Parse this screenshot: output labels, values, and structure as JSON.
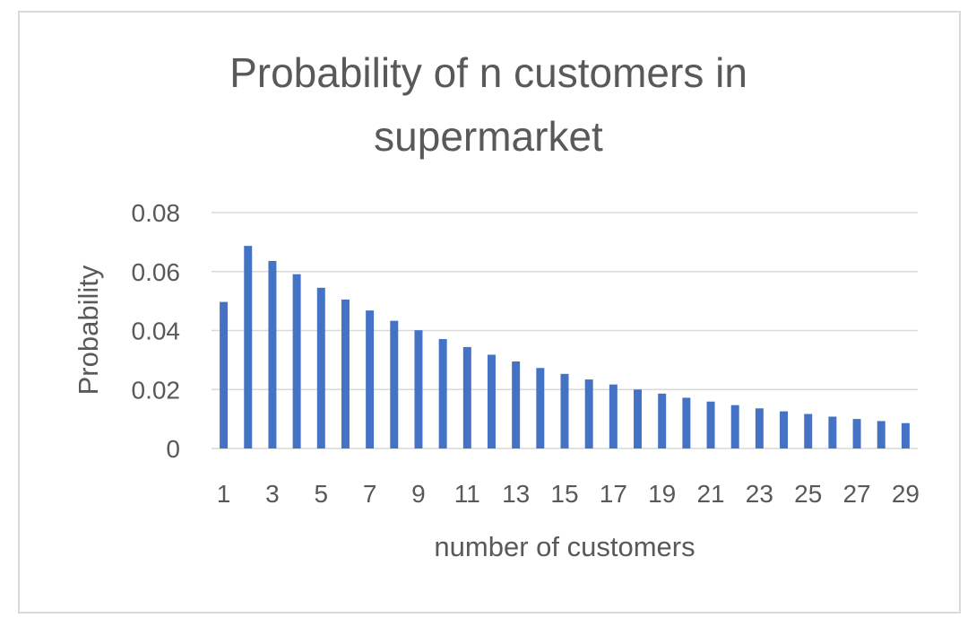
{
  "chart_data": {
    "type": "bar",
    "title": "Probability of n customers in supermarket",
    "title_lines": [
      "Probability of n customers in",
      "supermarket"
    ],
    "xlabel": "number of customers",
    "ylabel": "Probability",
    "categories": [
      "1",
      "2",
      "3",
      "4",
      "5",
      "6",
      "7",
      "8",
      "9",
      "10",
      "11",
      "12",
      "13",
      "14",
      "15",
      "16",
      "17",
      "18",
      "19",
      "20",
      "21",
      "22",
      "23",
      "24",
      "25",
      "26",
      "27",
      "28",
      "29"
    ],
    "x_tick_labels": [
      "1",
      "3",
      "5",
      "7",
      "9",
      "11",
      "13",
      "15",
      "17",
      "19",
      "21",
      "23",
      "25",
      "27",
      "29"
    ],
    "values": [
      0.0497,
      0.0687,
      0.0636,
      0.0591,
      0.0545,
      0.0505,
      0.0468,
      0.0433,
      0.0401,
      0.0371,
      0.0344,
      0.0318,
      0.0295,
      0.0273,
      0.0253,
      0.0234,
      0.0217,
      0.02,
      0.0186,
      0.0172,
      0.0159,
      0.0147,
      0.0136,
      0.0126,
      0.0117,
      0.0108,
      0.01,
      0.0093,
      0.0086
    ],
    "ylim": [
      0,
      0.08
    ],
    "y_ticks": [
      0,
      0.02,
      0.04,
      0.06,
      0.08
    ],
    "y_tick_labels": [
      "0",
      "0.02",
      "0.04",
      "0.06",
      "0.08"
    ],
    "grid": true,
    "legend": "none",
    "bar_color": "#4472c4"
  }
}
